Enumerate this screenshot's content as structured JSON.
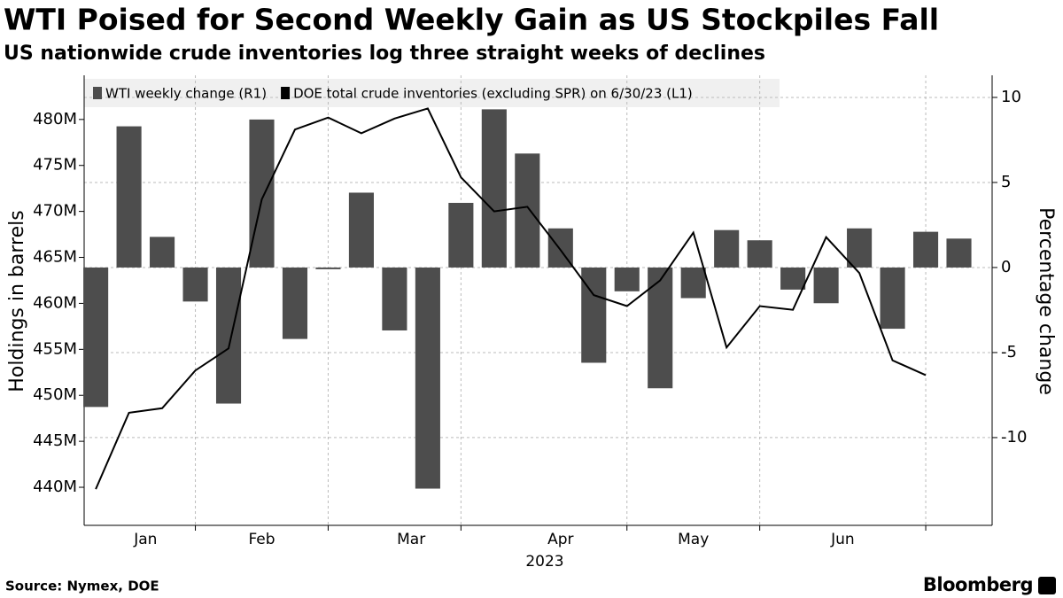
{
  "chart_data": {
    "type": "bar_line",
    "title": "WTI Poised for Second Weekly Gain as US Stockpiles Fall",
    "subtitle": "US nationwide crude inventories log three straight weeks of declines",
    "y_label": "Holdings in barrels",
    "y2_label": "Percentage change",
    "x_label": "2023",
    "source": "Source: Nymex, DOE",
    "brand": "Bloomberg",
    "categories": [
      null,
      null,
      null,
      null,
      null,
      null,
      null,
      null,
      null,
      null,
      null,
      null,
      null,
      null,
      null,
      null,
      null,
      null,
      null,
      null,
      null,
      null,
      null,
      null,
      null,
      null,
      null
    ],
    "xlim": [
      -0.35,
      27
    ],
    "xticks": [
      {
        "value": 1.5,
        "label": "Jan"
      },
      {
        "value": 5,
        "label": "Feb"
      },
      {
        "value": 9.5,
        "label": "Mar"
      },
      {
        "value": 14,
        "label": "Apr"
      },
      {
        "value": 18,
        "label": "May"
      },
      {
        "value": 22.5,
        "label": "Jun"
      }
    ],
    "xgrid": [
      3,
      7,
      11,
      16,
      20,
      25
    ],
    "ylim": [
      435.86,
      484.8
    ],
    "yticks": [
      {
        "value": 440,
        "label": "440M"
      },
      {
        "value": 445,
        "label": "445M"
      },
      {
        "value": 450,
        "label": "450M"
      },
      {
        "value": 455,
        "label": "455M"
      },
      {
        "value": 460,
        "label": "460M"
      },
      {
        "value": 465,
        "label": "465M"
      },
      {
        "value": 470,
        "label": "470M"
      },
      {
        "value": 475,
        "label": "475M"
      },
      {
        "value": 480,
        "label": "480M"
      }
    ],
    "y2lim": [
      -15.16,
      11.3
    ],
    "y2ticks": [
      10,
      5,
      0,
      -5,
      -10
    ],
    "grid": true,
    "legend": "top-left",
    "series": [
      {
        "name": "WTI weekly change (R1)",
        "type": "bar",
        "axis": "y2",
        "color": "#4d4d4d",
        "values": [
          -8.2,
          8.3,
          1.8,
          -2.0,
          -8.0,
          8.7,
          -4.2,
          -0.1,
          4.4,
          -3.7,
          -13.0,
          3.8,
          9.3,
          6.7,
          2.3,
          -5.6,
          -1.4,
          -7.1,
          -1.8,
          2.2,
          1.6,
          -1.3,
          -2.1,
          2.3,
          -3.6,
          2.1,
          1.7
        ]
      },
      {
        "name": "DOE total crude inventories (excluding SPR) on 6/30/23 (L1)",
        "type": "line",
        "axis": "y",
        "color": "#000000",
        "values": [
          439.8,
          448.1,
          448.6,
          452.7,
          455.1,
          471.3,
          478.9,
          480.2,
          478.5,
          480.1,
          481.2,
          473.7,
          470.0,
          470.5,
          465.8,
          460.9,
          459.7,
          462.5,
          467.7,
          455.2,
          459.7,
          459.3,
          467.2,
          463.3,
          453.8,
          452.2,
          null
        ]
      }
    ]
  }
}
